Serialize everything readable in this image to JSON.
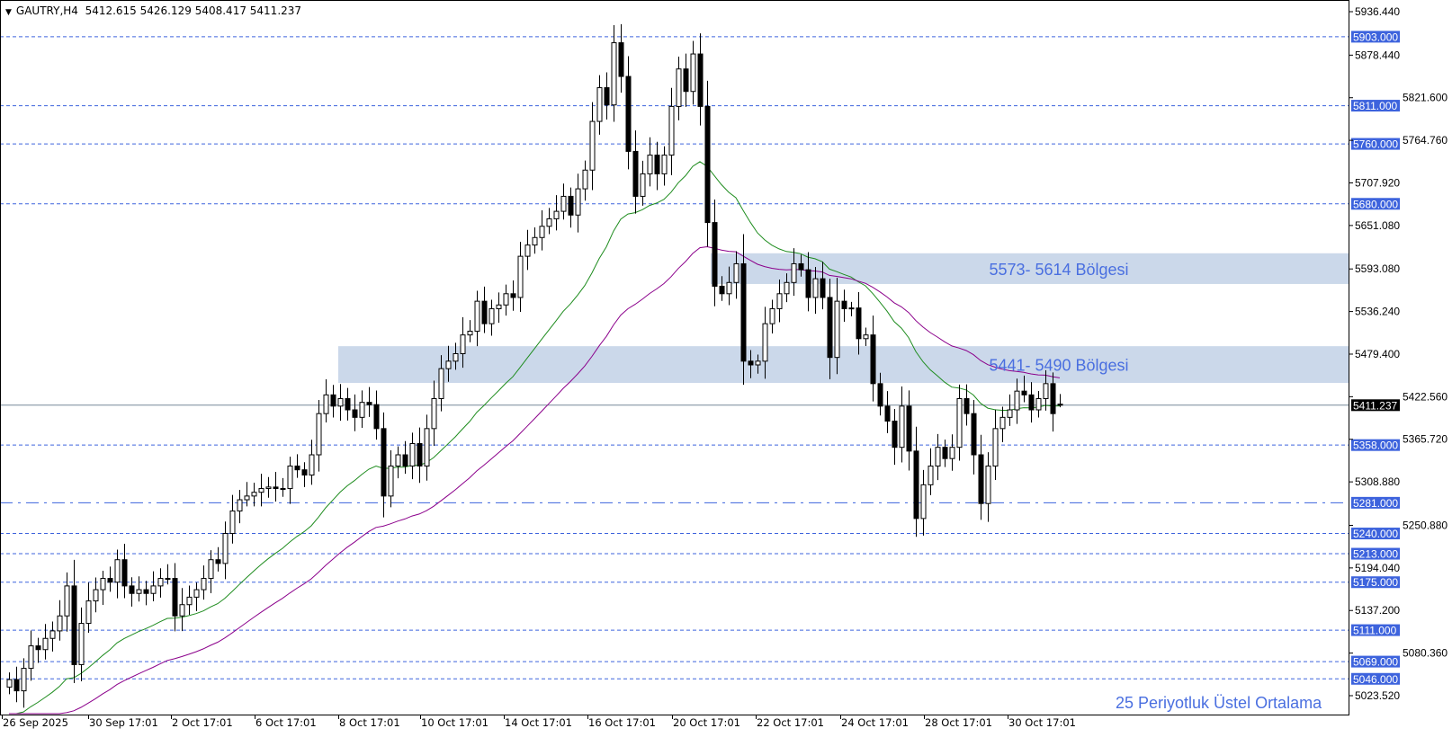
{
  "header": {
    "symbol": "GAUTRY,H4",
    "ohlc_text": "5412.615 5426.129 5408.417 5411.237"
  },
  "colors": {
    "bull_body": "#ffffff",
    "bear_body": "#000000",
    "level_line": "#3d63dd",
    "zone_fill": "#cbd8ea",
    "zone_text": "#4a6fe0",
    "ema_fast": "#1e8c1e",
    "ema_slow": "#8b008b",
    "price_line": "#778899"
  },
  "chart_data": {
    "type": "candlestick",
    "symbol": "GAUTRY",
    "timeframe": "H4",
    "ylim": [
      5023.52,
      5936.44
    ],
    "y_ticks": [
      "5936.440",
      "5878.440",
      "5821.600",
      "5764.760",
      "5707.920",
      "5651.080",
      "5593.080",
      "5536.240",
      "5479.400",
      "5422.560",
      "5365.720",
      "5308.880",
      "5250.880",
      "5194.040",
      "5137.200",
      "5080.360",
      "5023.520"
    ],
    "x_ticks": [
      "26 Sep 2025",
      "30 Sep 17:01",
      "2 Oct 17:01",
      "6 Oct 17:01",
      "8 Oct 17:01",
      "10 Oct 17:01",
      "14 Oct 17:01",
      "16 Oct 17:01",
      "20 Oct 17:01",
      "22 Oct 17:01",
      "24 Oct 17:01",
      "28 Oct 17:01",
      "30 Oct 17:01"
    ],
    "closes": [
      5045,
      5030,
      5060,
      5090,
      5085,
      5100,
      5110,
      5130,
      5170,
      5065,
      5120,
      5150,
      5165,
      5180,
      5175,
      5205,
      5170,
      5160,
      5165,
      5160,
      5170,
      5180,
      5180,
      5130,
      5145,
      5155,
      5165,
      5180,
      5205,
      5200,
      5240,
      5270,
      5285,
      5290,
      5295,
      5300,
      5302,
      5300,
      5300,
      5330,
      5325,
      5318,
      5345,
      5400,
      5425,
      5410,
      5420,
      5405,
      5395,
      5415,
      5412,
      5380,
      5290,
      5330,
      5345,
      5330,
      5360,
      5330,
      5380,
      5420,
      5460,
      5470,
      5480,
      5505,
      5510,
      5550,
      5520,
      5540,
      5545,
      5560,
      5555,
      5610,
      5625,
      5635,
      5650,
      5660,
      5670,
      5690,
      5665,
      5700,
      5725,
      5790,
      5835,
      5812,
      5895,
      5850,
      5750,
      5690,
      5720,
      5745,
      5720,
      5745,
      5810,
      5860,
      5830,
      5880,
      5810,
      5655,
      5570,
      5560,
      5575,
      5600,
      5470,
      5465,
      5470,
      5520,
      5540,
      5560,
      5575,
      5600,
      5592,
      5555,
      5580,
      5555,
      5475,
      5550,
      5540,
      5541,
      5500,
      5505,
      5440,
      5410,
      5390,
      5355,
      5410,
      5350,
      5260,
      5305,
      5330,
      5355,
      5340,
      5355,
      5420,
      5400,
      5345,
      5280,
      5330,
      5380,
      5395,
      5405,
      5430,
      5425,
      5405,
      5420,
      5440,
      5400,
      5412.615
    ],
    "last_candle": {
      "open": 5412.615,
      "high": 5426.129,
      "low": 5408.417,
      "close": 5411.237
    },
    "current_price": "5411.237",
    "levels": [
      {
        "price": 5903,
        "label": "5903.000",
        "style": "dotted"
      },
      {
        "price": 5811,
        "label": "5811.000",
        "style": "dotted"
      },
      {
        "price": 5760,
        "label": "5760.000",
        "style": "dotted"
      },
      {
        "price": 5680,
        "label": "5680.000",
        "style": "dotted"
      },
      {
        "price": 5358,
        "label": "5358.000",
        "style": "dotted"
      },
      {
        "price": 5281,
        "label": "5281.000",
        "style": "dashdot"
      },
      {
        "price": 5240,
        "label": "5240.000",
        "style": "dotted"
      },
      {
        "price": 5213,
        "label": "5213.000",
        "style": "dotted"
      },
      {
        "price": 5175,
        "label": "5175.000",
        "style": "dotted"
      },
      {
        "price": 5111,
        "label": "5111.000",
        "style": "dotted"
      },
      {
        "price": 5069,
        "label": "5069.000",
        "style": "dotted"
      },
      {
        "price": 5046,
        "label": "5046.000",
        "style": "dotted"
      }
    ],
    "zones": [
      {
        "low": 5573,
        "high": 5614,
        "label": "5573- 5614 Bölgesi"
      },
      {
        "low": 5441,
        "high": 5490,
        "label": "5441- 5490 Bölgesi"
      }
    ],
    "indicator_caption": "25 Periyotluk Üstel Ortalama"
  }
}
